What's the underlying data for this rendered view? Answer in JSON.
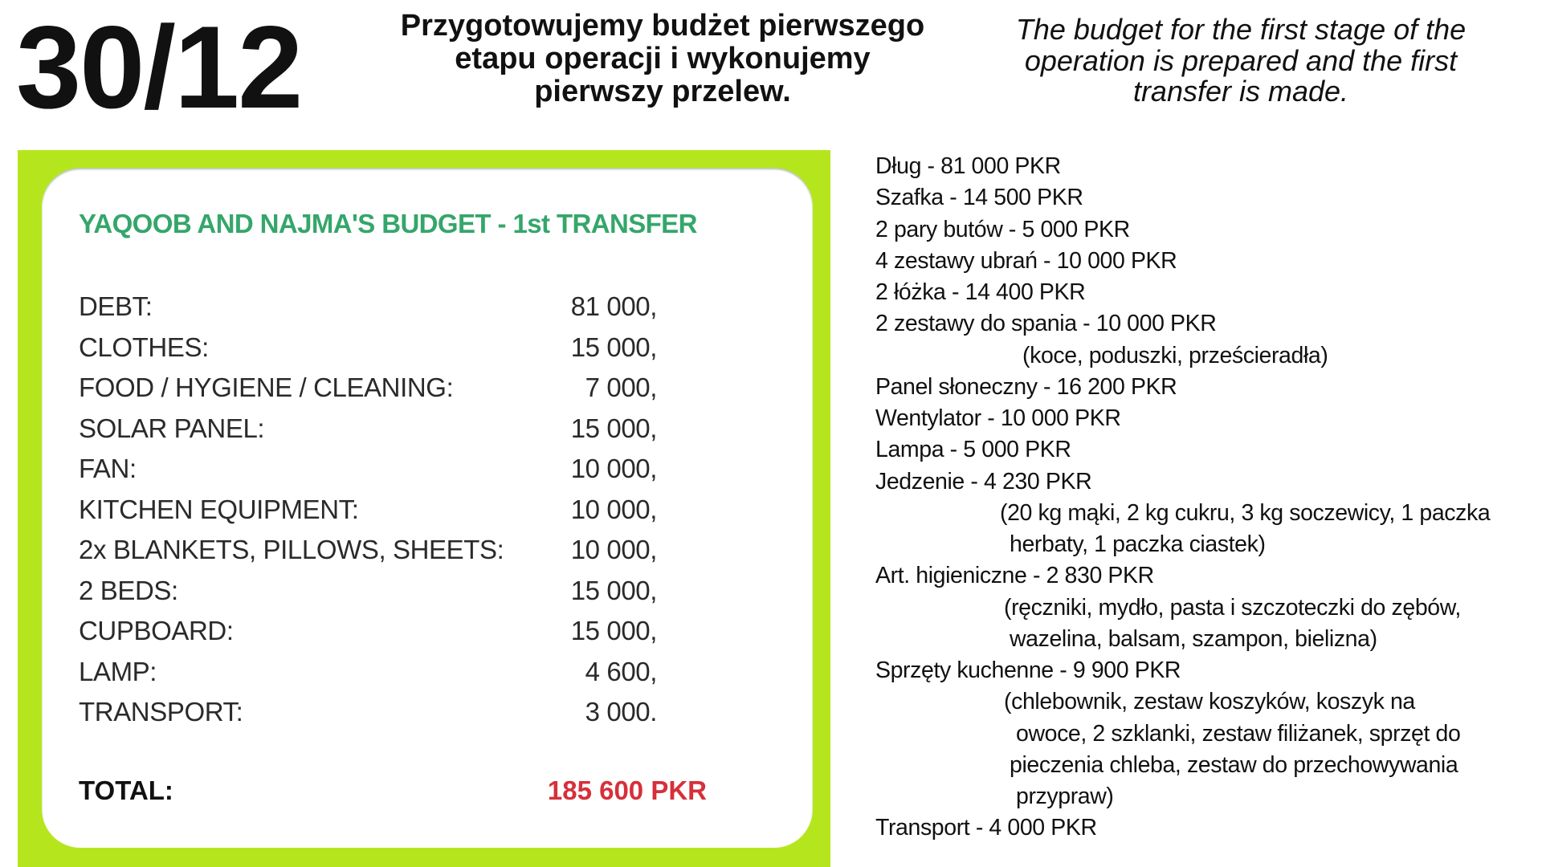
{
  "header": {
    "date": "30/12",
    "title_pl": [
      "Przygotowujemy budżet pierwszego",
      "etapu operacji  i wykonujemy",
      "pierwszy przelew."
    ],
    "title_en": [
      "The budget for the first stage of the",
      "operation is prepared and the first",
      "transfer is made."
    ]
  },
  "budget": {
    "title": "YAQOOB AND NAJMA'S BUDGET - 1st TRANSFER",
    "rows": [
      {
        "label": "DEBT:",
        "amount": "81 000,"
      },
      {
        "label": "CLOTHES:",
        "amount": "15 000,"
      },
      {
        "label": "FOOD / HYGIENE / CLEANING:",
        "amount": "7 000,"
      },
      {
        "label": "SOLAR PANEL:",
        "amount": "15 000,"
      },
      {
        "label": "FAN:",
        "amount": "10 000,"
      },
      {
        "label": "KITCHEN EQUIPMENT:",
        "amount": "10 000,"
      },
      {
        "label": "2x BLANKETS, PILLOWS, SHEETS:",
        "amount": "10 000,"
      },
      {
        "label": "2 BEDS:",
        "amount": "15 000,"
      },
      {
        "label": "CUPBOARD:",
        "amount": "15 000,"
      },
      {
        "label": "LAMP:",
        "amount": "4 600,"
      },
      {
        "label": "TRANSPORT:",
        "amount": "3 000."
      }
    ],
    "total_label": "TOTAL:",
    "total_amount": "185 600 PKR",
    "colors": {
      "frame": "#b5e61d",
      "title": "#35a66a",
      "total": "#d6303a"
    }
  },
  "details": [
    "Dług - 81 000 PKR",
    "Szafka - 14 500 PKR",
    "2 pary butów - 5 000 PKR",
    "4 zestawy ubrań - 10 000 PKR",
    "2 łóżka - 14 400 PKR",
    "2 zestawy do spania - 10 000 PKR",
    "(koce, poduszki, prześcieradła)",
    "Panel słoneczny - 16 200 PKR",
    "Wentylator - 10 000 PKR",
    "Lampa - 5 000 PKR",
    "Jedzenie - 4 230 PKR",
    "(20 kg mąki, 2 kg cukru, 3 kg soczewicy, 1 paczka",
    "herbaty, 1 paczka ciastek)",
    "Art. higieniczne - 2 830 PKR",
    "(ręczniki, mydło, pasta i szczoteczki do zębów,",
    "wazelina, balsam, szampon, bielizna)",
    "Sprzęty kuchenne - 9 900 PKR",
    "(chlebownik, zestaw koszyków, koszyk na",
    "owoce, 2 szklanki, zestaw filiżanek, sprzęt do",
    "pieczenia chleba, zestaw do przechowywania",
    "przypraw)",
    "Transport - 4 000 PKR"
  ]
}
